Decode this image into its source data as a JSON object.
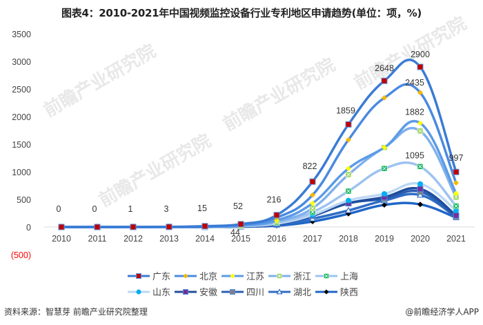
{
  "title": "图表4：2010-2021年中国视频监控设备行业专利地区申请趋势(单位：项，%)",
  "footer": {
    "source": "资料来源：智慧芽 前瞻产业研究院整理",
    "credit": "@前瞻经济学人APP"
  },
  "watermark": "前瞻产业研究院",
  "chart_data": {
    "type": "line",
    "title": "图表4：2010-2021年中国视频监控设备行业专利地区申请趋势(单位：项，%)",
    "xlabel": "",
    "ylabel": "",
    "ylim": [
      -500,
      3500
    ],
    "yticks": [
      "(500)",
      "0",
      "500",
      "1000",
      "1500",
      "2000",
      "2500",
      "3000",
      "3500"
    ],
    "grid": false,
    "legend_position": "bottom",
    "categories": [
      "2010",
      "2011",
      "2012",
      "2013",
      "2014",
      "2015",
      "2016",
      "2017",
      "2018",
      "2019",
      "2020",
      "2021"
    ],
    "data_labels": {
      "广东": [
        "0",
        "0",
        "1",
        "3",
        "15",
        "52",
        "216",
        "822",
        "1859",
        "2648",
        "2900",
        "997"
      ],
      "extra_2015": "44",
      "北京_2020": "2435",
      "江苏_2020": "1882",
      "上海_2020": "1095"
    },
    "series": [
      {
        "name": "广东",
        "color": "#3a7bd5",
        "marker": "square",
        "marker_color": "#c00000",
        "values": [
          0,
          0,
          1,
          3,
          15,
          52,
          216,
          822,
          1859,
          2648,
          2900,
          997
        ]
      },
      {
        "name": "北京",
        "color": "#4a8ae0",
        "marker": "diamond",
        "marker_color": "#f5b800",
        "values": [
          0,
          0,
          0,
          2,
          10,
          44,
          170,
          580,
          1580,
          2340,
          2435,
          800
        ]
      },
      {
        "name": "江苏",
        "color": "#5b9be6",
        "marker": "diamond",
        "marker_color": "#ffff00",
        "values": [
          0,
          0,
          0,
          1,
          6,
          30,
          120,
          430,
          1060,
          1440,
          1882,
          610
        ]
      },
      {
        "name": "浙江",
        "color": "#7fb0ec",
        "marker": "xsquare",
        "marker_color": "#92d050",
        "values": [
          0,
          0,
          0,
          1,
          5,
          25,
          100,
          340,
          950,
          1440,
          1740,
          540
        ]
      },
      {
        "name": "上海",
        "color": "#9dc3f0",
        "marker": "xsquare",
        "marker_color": "#00b050",
        "values": [
          0,
          0,
          0,
          1,
          4,
          20,
          80,
          270,
          650,
          1060,
          1095,
          380
        ]
      },
      {
        "name": "山东",
        "color": "#bcd7f5",
        "marker": "circle",
        "marker_color": "#00b0f0",
        "values": [
          0,
          0,
          0,
          0,
          3,
          15,
          60,
          220,
          480,
          600,
          780,
          300
        ]
      },
      {
        "name": "安徽",
        "color": "#1f4e9c",
        "marker": "square",
        "marker_color": "#7030a0",
        "values": [
          0,
          0,
          0,
          0,
          2,
          12,
          50,
          210,
          430,
          540,
          690,
          210
        ]
      },
      {
        "name": "四川",
        "color": "#2a5fb5",
        "marker": "square",
        "marker_color": "#808080",
        "values": [
          0,
          0,
          0,
          0,
          2,
          10,
          45,
          200,
          430,
          510,
          640,
          180
        ]
      },
      {
        "name": "湖北",
        "color": "#2f6dc6",
        "marker": "triangle",
        "marker_color": "#ffffff",
        "values": [
          0,
          0,
          0,
          0,
          2,
          8,
          35,
          150,
          300,
          480,
          580,
          180
        ]
      },
      {
        "name": "陕西",
        "color": "#1f66c8",
        "marker": "diamond",
        "marker_color": "#000000",
        "values": [
          0,
          0,
          0,
          0,
          1,
          5,
          25,
          100,
          240,
          400,
          410,
          170
        ]
      }
    ]
  }
}
